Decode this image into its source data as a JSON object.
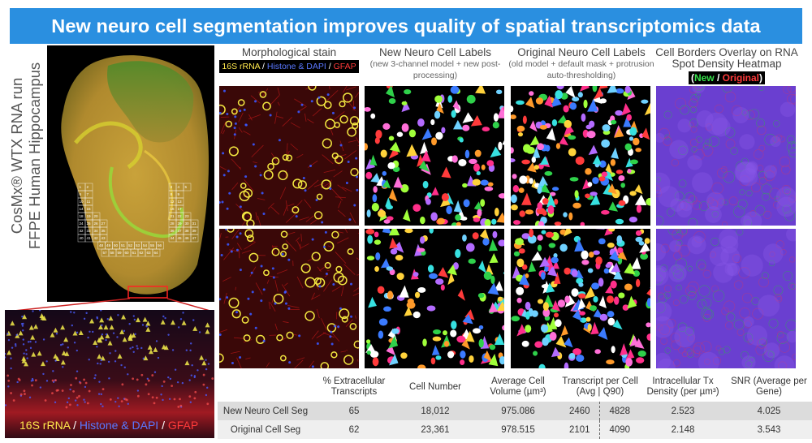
{
  "banner": {
    "title": "New neuro cell segmentation improves quality of spatial transcriptomics data"
  },
  "side_title": {
    "line1": "CosMx® WTX  RNA run",
    "line2": "FFPE Human Hippocampus"
  },
  "stain_legend": {
    "rrna": "16S rRNA",
    "sep": " / ",
    "histone": "Histone & DAPI",
    "gfap": "GFAP"
  },
  "columns": [
    {
      "title": "Morphological stain"
    },
    {
      "title": "New Neuro Cell Labels",
      "subtitle": "(new 3-channel model + new post-processing)"
    },
    {
      "title": "Original Neuro Cell Labels",
      "subtitle": "(old model + default mask + protrusion auto-thresholding)"
    },
    {
      "title": "Cell Borders Overlay on RNA Spot Density Heatmap",
      "legend_new": "New",
      "legend_sep": " / ",
      "legend_orig": "Original"
    }
  ],
  "grid_numbers": [
    "1",
    "2",
    "3",
    "4",
    "5",
    "6",
    "7",
    "8",
    "9",
    "10",
    "11",
    "12",
    "13",
    "14",
    "15",
    "16",
    "17",
    "18",
    "19",
    "20",
    "21",
    "22",
    "23",
    "24",
    "25",
    "26",
    "27",
    "28",
    "29",
    "30",
    "31",
    "32",
    "33",
    "34",
    "35",
    "36",
    "37",
    "38",
    "39",
    "40",
    "41",
    "42",
    "43",
    "44",
    "45",
    "46",
    "47",
    "48",
    "49",
    "50",
    "51",
    "52",
    "53",
    "54",
    "55",
    "56",
    "57",
    "58",
    "59",
    "60",
    "61",
    "62",
    "63",
    "64",
    "65",
    "66",
    "67",
    "68",
    "69",
    "70",
    "71",
    "72",
    "73",
    "74",
    "75"
  ],
  "table": {
    "headers": [
      "% Extracellular Transcripts",
      "Cell Number",
      "Average Cell Volume (µm³)",
      "Transcript per Cell (Avg | Q90)",
      "Intracellular Tx Density (per µm³)",
      "SNR (Average per Gene)"
    ],
    "rows": [
      {
        "name": "New Neuro Cell Seg",
        "extracellular": "65",
        "cell_number": "18,012",
        "avg_volume": "975.086",
        "tx_avg": "2460",
        "tx_q90": "4828",
        "density": "2.523",
        "snr": "4.025"
      },
      {
        "name": "Original Cell Seg",
        "extracellular": "62",
        "cell_number": "23,361",
        "avg_volume": "978.515",
        "tx_avg": "2101",
        "tx_q90": "4090",
        "density": "2.148",
        "snr": "3.543"
      }
    ]
  },
  "colors": {
    "banner": "#2a8fe0",
    "new": "#37e04a",
    "original": "#ff3a3a",
    "rrna": "#ffe94d",
    "histone": "#5a78ff",
    "gfap": "#ff3a3a"
  }
}
